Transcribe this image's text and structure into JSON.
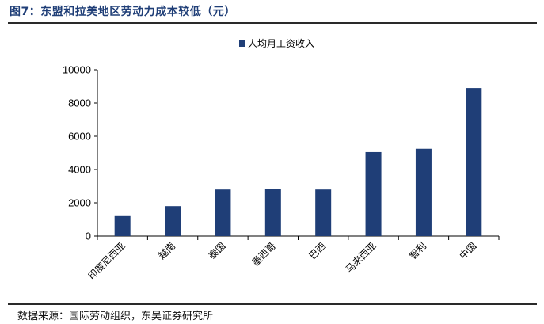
{
  "header": {
    "title": "图7：东盟和拉美地区劳动力成本较低（元）"
  },
  "footer": {
    "source": "数据来源：国际劳动组织，东吴证券研究所"
  },
  "chart_data": {
    "type": "bar",
    "categories": [
      "印度尼西亚",
      "越南",
      "泰国",
      "墨西哥",
      "巴西",
      "马来西亚",
      "智利",
      "中国"
    ],
    "series": [
      {
        "name": "人均月工资收入",
        "values": [
          1200,
          1800,
          2800,
          2850,
          2800,
          5050,
          5250,
          8900
        ],
        "color": "#1f3e77"
      }
    ],
    "ylim": [
      0,
      10000
    ],
    "yticks": [
      0,
      2000,
      4000,
      6000,
      8000,
      10000
    ],
    "grid": false,
    "legend": "top-center"
  }
}
